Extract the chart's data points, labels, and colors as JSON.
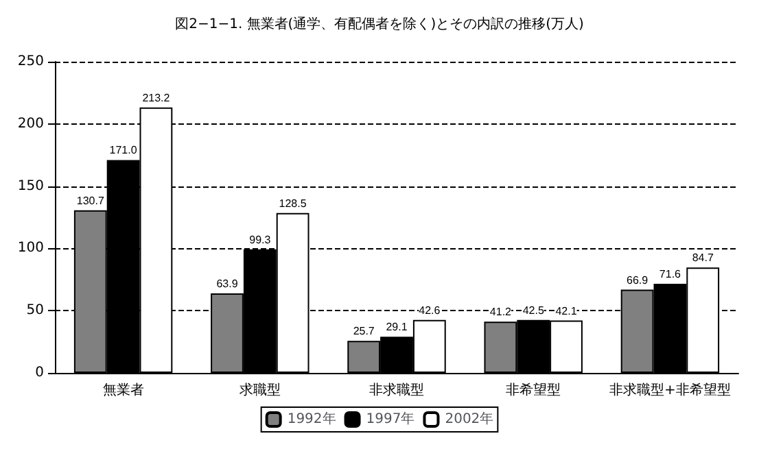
{
  "chart_data": {
    "type": "bar",
    "title": "図2−1−1. 無業者(通学、有配偶者を除く)とその内訳の推移(万人)",
    "categories": [
      "無業者",
      "求職型",
      "非求職型",
      "非希望型",
      "非求職型+非希望型"
    ],
    "series": [
      {
        "name": "1992年",
        "color": "#808080",
        "values": [
          130.7,
          63.9,
          25.7,
          41.2,
          66.9
        ],
        "value_labels": [
          "130.7",
          "63.9",
          "25.7",
          "41.2",
          "66.9"
        ]
      },
      {
        "name": "1997年",
        "color": "#000000",
        "values": [
          171.0,
          99.3,
          29.1,
          42.5,
          71.6
        ],
        "value_labels": [
          "171.0",
          "99.3",
          "29.1",
          "42.5",
          "71.6"
        ]
      },
      {
        "name": "2002年",
        "color": "#ffffff",
        "values": [
          213.2,
          128.5,
          42.6,
          42.1,
          84.7
        ],
        "value_labels": [
          "213.2",
          "128.5",
          "42.6",
          "42.1",
          "84.7"
        ]
      }
    ],
    "ylim": [
      0,
      250
    ],
    "yticks": [
      0,
      50,
      100,
      150,
      200,
      250
    ],
    "grid": "y",
    "legend": "bottom"
  }
}
